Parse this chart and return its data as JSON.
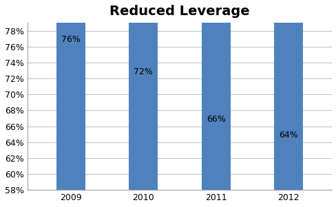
{
  "title": "Reduced Leverage",
  "categories": [
    "2009",
    "2010",
    "2011",
    "2012"
  ],
  "values": [
    76,
    72,
    66,
    64
  ],
  "labels": [
    "76%",
    "72%",
    "66%",
    "64%"
  ],
  "bar_color": "#4f81bd",
  "background_color": "#ffffff",
  "plot_bg_color": "#ffffff",
  "grid_color": "#c0c0c0",
  "spine_color": "#a0a0a0",
  "ylim_min": 58,
  "ylim_max": 79,
  "ytick_step": 2,
  "title_fontsize": 14,
  "label_fontsize": 9,
  "tick_fontsize": 9,
  "bar_width": 0.4,
  "figwidth": 4.89,
  "figheight": 3.01,
  "dpi": 100
}
